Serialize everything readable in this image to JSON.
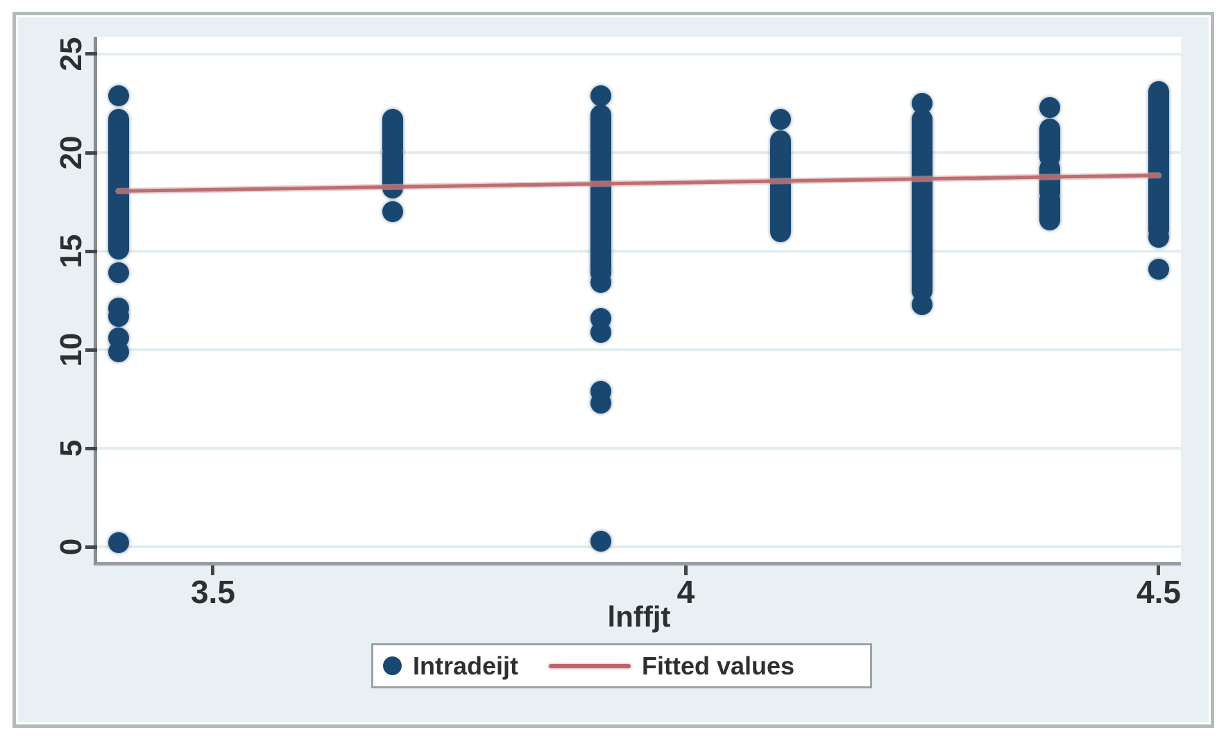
{
  "figure": {
    "xlabel": "lnffjt",
    "legend": {
      "items": [
        {
          "label": "Intradeijt",
          "marker": "dot",
          "color": "#1a476f"
        },
        {
          "label": "Fitted values",
          "marker": "line",
          "color": "#bb666a"
        }
      ]
    },
    "colors": {
      "background": "#e9f0f3",
      "plot_background": "#ffffff",
      "gridline": "#e2edef",
      "axis_line": "#878d90",
      "scatter": "#1a476f",
      "fit_line": "#bb666a",
      "text": "#2d2f31",
      "frame_border": "#b4babc"
    }
  },
  "chart_data": {
    "type": "scatter",
    "title": "",
    "xlabel": "lnffjt",
    "ylabel": "",
    "grid": true,
    "legend_position": "bottom",
    "xlim": [
      3.3775,
      4.5235
    ],
    "ylim": [
      -0.77,
      25.88
    ],
    "x_ticks": [
      {
        "v": 3.5,
        "label": "3.5"
      },
      {
        "v": 4,
        "label": "4"
      },
      {
        "v": 4.5,
        "label": "4.5"
      }
    ],
    "y_ticks": [
      {
        "v": 0,
        "label": "0"
      },
      {
        "v": 5,
        "label": "5"
      },
      {
        "v": 10,
        "label": "10"
      },
      {
        "v": 15,
        "label": "15"
      },
      {
        "v": 20,
        "label": "20"
      },
      {
        "v": 25,
        "label": "25"
      }
    ],
    "series": [
      {
        "name": "Intradeijt",
        "type": "scatter",
        "color": "#1a476f",
        "marker_diameter_px": 30,
        "columns": [
          {
            "x": 3.4,
            "segments": [
              [
                15.1,
                21.7
              ]
            ],
            "points": [
              22.9,
              13.9,
              12.1,
              11.7,
              10.6,
              9.9,
              0.2
            ]
          },
          {
            "x": 3.69,
            "segments": [
              [
                20.2,
                21.7
              ],
              [
                18.2,
                19.9
              ]
            ],
            "points": [
              17.0
            ]
          },
          {
            "x": 3.91,
            "segments": [
              [
                14.2,
                21.9
              ]
            ],
            "points": [
              22.9,
              13.9,
              13.4,
              11.6,
              10.9,
              7.9,
              7.3,
              0.3
            ]
          },
          {
            "x": 4.1,
            "segments": [
              [
                16.0,
                20.6
              ]
            ],
            "points": [
              21.7
            ]
          },
          {
            "x": 4.25,
            "segments": [
              [
                13.0,
                21.7
              ]
            ],
            "points": [
              22.5,
              12.3
            ]
          },
          {
            "x": 4.385,
            "segments": [
              [
                19.8,
                21.2
              ],
              [
                18.0,
                19.2
              ],
              [
                16.6,
                17.6
              ]
            ],
            "points": [
              22.3
            ]
          },
          {
            "x": 4.5,
            "segments": [
              [
                16.1,
                23.1
              ]
            ],
            "points": [
              15.7,
              14.1
            ]
          }
        ]
      },
      {
        "name": "Fitted values",
        "type": "line",
        "color": "#bb666a",
        "points": [
          {
            "x": 3.4,
            "y": 18.05
          },
          {
            "x": 4.5,
            "y": 18.85
          }
        ]
      }
    ]
  }
}
